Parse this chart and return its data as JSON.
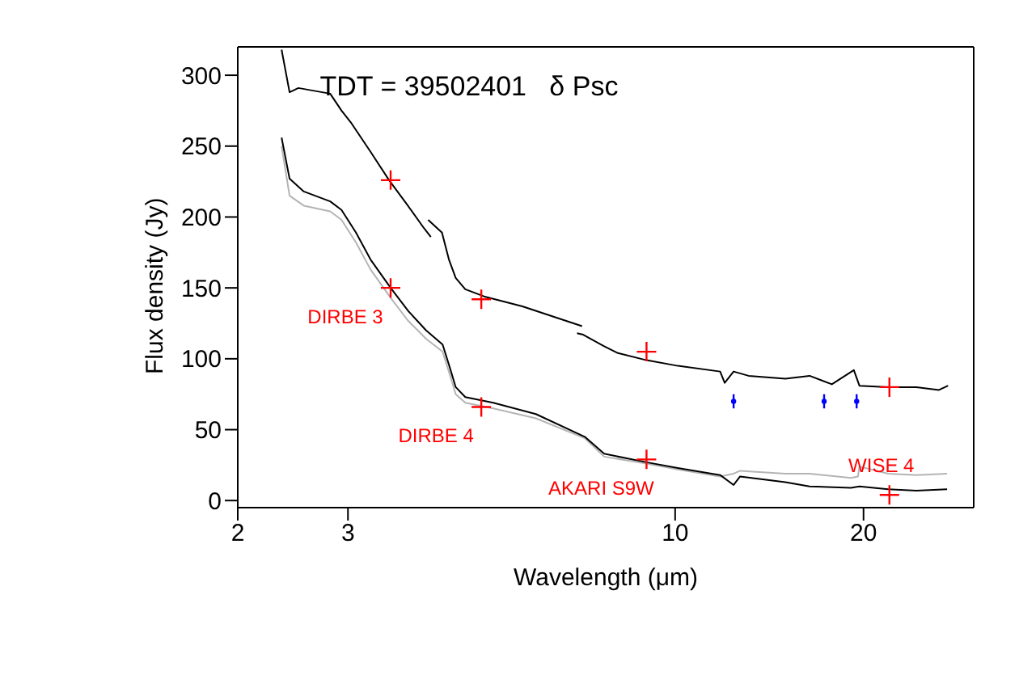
{
  "chart_data": {
    "type": "line",
    "title": "TDT = 39502401   δ Psc",
    "xlabel": "Wavelength (μm)",
    "ylabel": "Flux density (Jy)",
    "log": "x",
    "xlim": [
      2,
      30
    ],
    "xticks": [
      2,
      3,
      10,
      20
    ],
    "ylim": [
      -5,
      320
    ],
    "yticks": [
      0,
      50,
      100,
      150,
      200,
      250,
      300
    ],
    "grid": false,
    "legend": false,
    "annotations": [
      {
        "text": "DIRBE 3",
        "x": 3.51,
        "y": 150
      },
      {
        "text": "DIRBE 4",
        "x": 4.9,
        "y": 66
      },
      {
        "text": "AKARI S9W",
        "x": 9.0,
        "y": 29
      },
      {
        "text": "WISE 4",
        "x": 22.0,
        "y": 4
      }
    ],
    "series": [
      {
        "color": "#000000",
        "marker": "none",
        "x": [
          2.35,
          2.42,
          2.5,
          2.81,
          2.93,
          3.04,
          3.26,
          3.49,
          3.74,
          3.97,
          4.07,
          4.05,
          4.03,
          4.24,
          4.35,
          4.46,
          4.62,
          4.95,
          5.7,
          7.1,
          7.0,
          6.97,
          7.13,
          7.69,
          8.1,
          9.0,
          10.1,
          11.8,
          12.0,
          12.4,
          13.1,
          15.0,
          16.4,
          17.8,
          19.3,
          19.7,
          21.9,
          24.3,
          26.4,
          27.3
        ],
        "values": [
          318,
          288,
          291,
          287,
          275,
          266,
          246,
          226,
          208,
          192,
          186,
          null,
          198,
          189,
          170,
          157,
          149,
          144,
          137,
          123,
          null,
          118,
          117,
          109,
          104,
          99,
          95,
          91,
          83,
          91,
          88,
          86,
          88,
          82,
          92,
          81,
          80,
          80,
          78,
          81
        ]
      },
      {
        "color": "#b4b4b4",
        "marker": "none",
        "x": [
          2.35,
          2.42,
          2.55,
          2.81,
          2.93,
          3.09,
          3.26,
          3.51,
          3.74,
          4.0,
          4.25,
          4.37,
          4.46,
          4.62,
          5.12,
          5.99,
          7.17,
          7.7,
          9.0,
          10.1,
          11.8,
          12.4,
          12.7,
          15.0,
          16.4,
          19.1,
          19.6,
          19.7,
          21.9,
          24.3,
          27.2
        ],
        "values": [
          250,
          215,
          208,
          204,
          198,
          182,
          163,
          143,
          127,
          114,
          105,
          88,
          75,
          69,
          65,
          58,
          44,
          31,
          26,
          22,
          17,
          19,
          21,
          19,
          19,
          16,
          17,
          24,
          19,
          18,
          19
        ]
      },
      {
        "color": "#000000",
        "marker": "none",
        "x": [
          2.35,
          2.42,
          2.55,
          2.81,
          2.93,
          3.09,
          3.26,
          3.51,
          3.74,
          4.0,
          4.25,
          4.37,
          4.46,
          4.62,
          5.12,
          5.99,
          7.17,
          7.7,
          9.0,
          10.1,
          11.8,
          12.4,
          12.7,
          15.0,
          16.4,
          19.1,
          19.7,
          21.9,
          24.3,
          27.2
        ],
        "values": [
          256,
          227,
          218,
          211,
          205,
          189,
          170,
          150,
          134,
          120,
          110,
          93,
          80,
          73,
          69,
          61,
          45,
          33,
          27,
          23,
          18,
          11,
          17,
          13,
          10,
          9,
          10,
          8,
          7,
          8
        ]
      },
      {
        "type": "scatter",
        "color": "#ff0000",
        "marker": "cross",
        "x": [
          3.51,
          4.9,
          9.0,
          22.0,
          3.51,
          4.9,
          9.0,
          22.0
        ],
        "values": [
          226,
          142,
          105,
          80,
          150,
          66,
          29,
          4
        ]
      },
      {
        "type": "scatter",
        "color": "#0000ff",
        "x": [
          12.4,
          17.3,
          19.5
        ],
        "values": [
          70,
          70,
          70
        ],
        "errors": [
          5,
          5,
          5
        ]
      }
    ]
  }
}
